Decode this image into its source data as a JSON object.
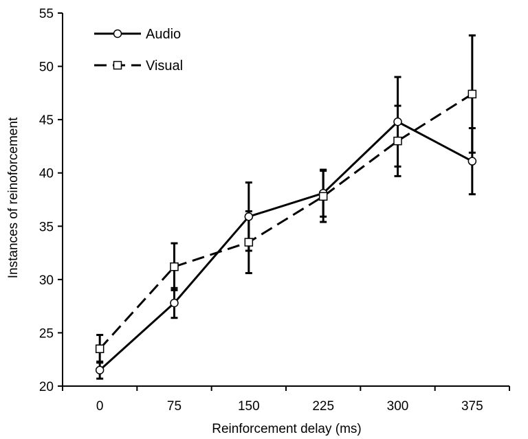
{
  "chart_data": {
    "type": "line",
    "title": "",
    "xlabel": "Reinforcement delay (ms)",
    "ylabel": "Instances of reinoforcement",
    "categories": [
      "0",
      "75",
      "150",
      "225",
      "300",
      "375"
    ],
    "ylim": [
      20,
      55
    ],
    "yticks": [
      "20",
      "25",
      "30",
      "35",
      "40",
      "45",
      "50",
      "55"
    ],
    "grid": false,
    "legend_position": "top-left",
    "series": [
      {
        "name": "Audio",
        "marker": "circle",
        "line_style": "solid",
        "values": [
          21.5,
          27.8,
          35.9,
          38.1,
          44.8,
          41.1
        ],
        "error": [
          0.8,
          1.4,
          3.2,
          2.2,
          4.2,
          3.1
        ]
      },
      {
        "name": "Visual",
        "marker": "square",
        "line_style": "dashed",
        "values": [
          23.5,
          31.2,
          33.5,
          37.8,
          43.0,
          47.4
        ],
        "error": [
          1.3,
          2.2,
          2.9,
          2.4,
          3.3,
          5.5
        ]
      }
    ]
  }
}
